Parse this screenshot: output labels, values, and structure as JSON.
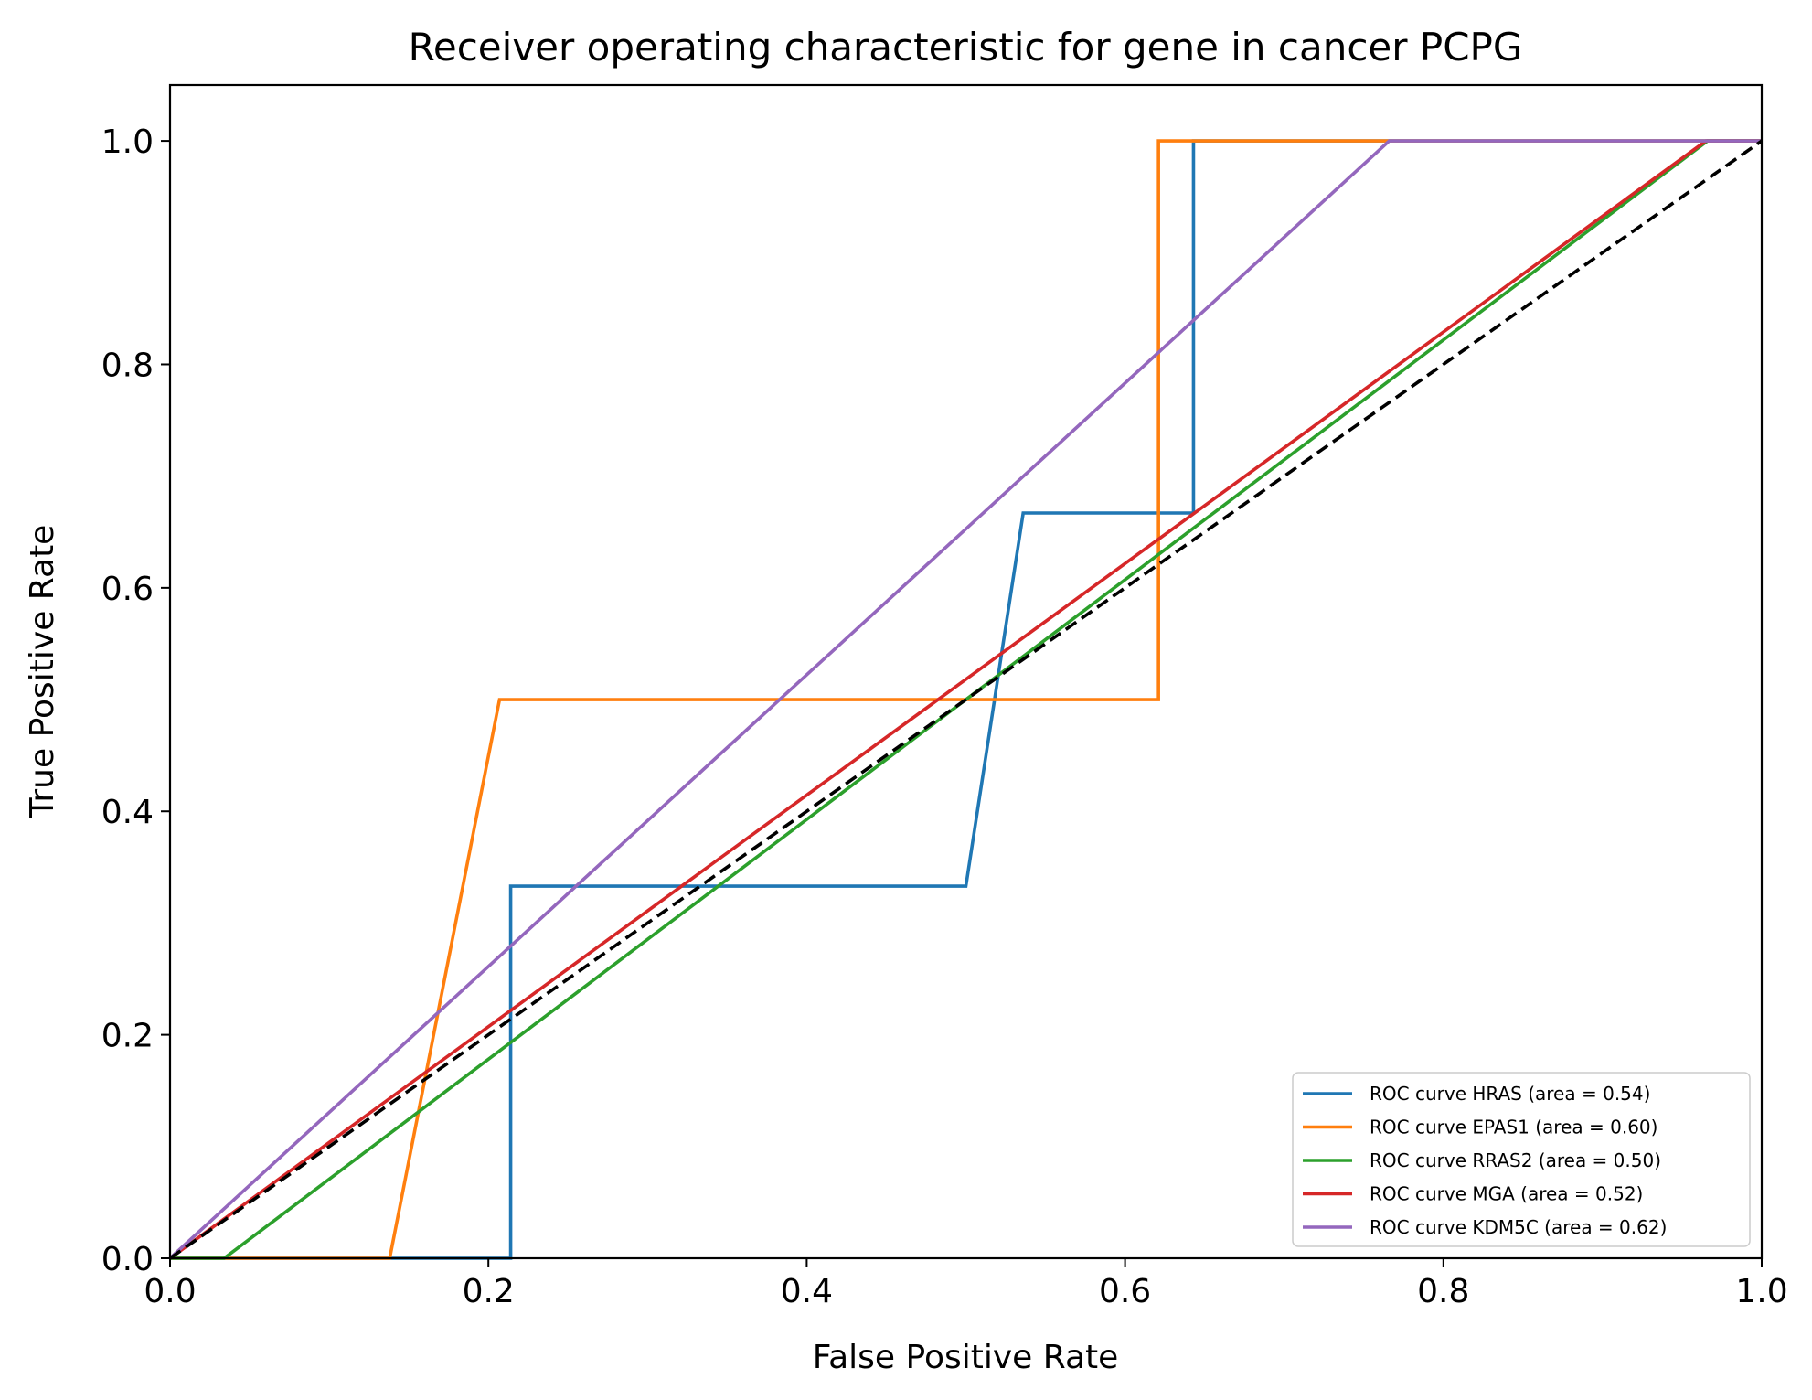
{
  "chart_data": {
    "type": "line",
    "title": "Receiver operating characteristic for gene in cancer PCPG",
    "xlabel": "False Positive Rate",
    "ylabel": "True Positive Rate",
    "xlim": [
      0.0,
      1.0
    ],
    "ylim": [
      0.0,
      1.05
    ],
    "grid": false,
    "legend_position": "lower-right",
    "xticks": [
      "0.0",
      "0.2",
      "0.4",
      "0.6",
      "0.8",
      "1.0"
    ],
    "yticks": [
      "0.0",
      "0.2",
      "0.4",
      "0.6",
      "0.8",
      "1.0"
    ],
    "reference_line": {
      "x": [
        0.0,
        1.0
      ],
      "y": [
        0.0,
        1.0
      ],
      "color": "#000000",
      "style": "dashed"
    },
    "series": [
      {
        "name": "ROC curve HRAS (area = 0.54)",
        "color": "#1f77b4",
        "x": [
          0.0,
          0.214,
          0.214,
          0.5,
          0.536,
          0.643,
          0.643,
          1.0
        ],
        "y": [
          0.0,
          0.0,
          0.333,
          0.333,
          0.667,
          0.667,
          1.0,
          1.0
        ]
      },
      {
        "name": "ROC curve EPAS1 (area = 0.60)",
        "color": "#ff7f0e",
        "x": [
          0.0,
          0.138,
          0.207,
          0.621,
          0.621,
          1.0
        ],
        "y": [
          0.0,
          0.0,
          0.5,
          0.5,
          1.0,
          1.0
        ]
      },
      {
        "name": "ROC curve RRAS2 (area = 0.50)",
        "color": "#2ca02c",
        "x": [
          0.0,
          0.034,
          0.966,
          1.0
        ],
        "y": [
          0.0,
          0.0,
          1.0,
          1.0
        ]
      },
      {
        "name": "ROC curve MGA (area = 0.52)",
        "color": "#d62728",
        "x": [
          0.0,
          0.965,
          1.0
        ],
        "y": [
          0.0,
          1.0,
          1.0
        ]
      },
      {
        "name": "ROC curve KDM5C (area = 0.62)",
        "color": "#9467bd",
        "x": [
          0.0,
          0.766,
          1.0
        ],
        "y": [
          0.0,
          1.0,
          1.0
        ]
      }
    ]
  }
}
